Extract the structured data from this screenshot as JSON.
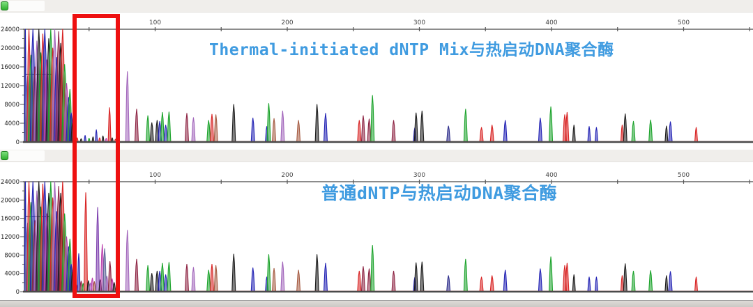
{
  "accent_colors": {
    "title_blue": "#3f9be0",
    "annotation_red": "#ee1010",
    "axis_line": "#555555",
    "baseline": "#4a4a4a"
  },
  "panels": [
    {
      "title": "Thermal-initiated dNTP Mix与热启动DNA聚合酶"
    },
    {
      "title": "普通dNTP与热启动DNA聚合酶"
    }
  ],
  "annotation": {
    "type": "highlight-box",
    "x_bp_from": 38,
    "x_bp_to": 73,
    "spans_both_panels": true
  },
  "chart_data": [
    {
      "type": "line",
      "subtype": "electropherogram",
      "title": "Thermal-initiated dNTP Mix与热启动DNA聚合酶",
      "x_ticks": [
        100,
        200,
        300,
        400,
        500
      ],
      "x_minor_tick_step": 50,
      "xlim": [
        0,
        553
      ],
      "ylim": [
        0,
        24000
      ],
      "y_ticks": [
        0,
        4000,
        8000,
        12000,
        16000,
        20000,
        24000
      ],
      "legend": "none",
      "grid": false,
      "colors": {
        "blue": "#2323b4",
        "green": "#1ba32b",
        "red": "#d82424",
        "black": "#1d1d1d",
        "magenta": "#bb3fae",
        "maroon": "#8e2544",
        "plum": "#a266bb",
        "violet": "#7d3fae",
        "brown": "#a65c43",
        "slate": "#5e6899",
        "navy": "#2b2b8a"
      },
      "plateau": {
        "from_bp": 1,
        "to_bp": 22,
        "value": 14400,
        "color": "slate"
      },
      "peaks": [
        [
          1.8,
          24000,
          "blue",
          1.2
        ],
        [
          3.5,
          14000,
          "slate",
          4
        ],
        [
          4.5,
          24000,
          "red",
          3
        ],
        [
          6,
          18500,
          "green",
          4
        ],
        [
          7.5,
          24000,
          "blue",
          4
        ],
        [
          9,
          16000,
          "maroon",
          4
        ],
        [
          10.5,
          21500,
          "plum",
          4
        ],
        [
          12,
          24000,
          "black",
          4
        ],
        [
          13.5,
          19000,
          "green",
          4
        ],
        [
          15,
          23000,
          "red",
          4
        ],
        [
          16.5,
          24000,
          "blue",
          4
        ],
        [
          18,
          17500,
          "magenta",
          4
        ],
        [
          19.5,
          22000,
          "black",
          4
        ],
        [
          21,
          24000,
          "green",
          4
        ],
        [
          22.5,
          20000,
          "red",
          4
        ],
        [
          24,
          24000,
          "plum",
          4
        ],
        [
          25.5,
          18000,
          "blue",
          4
        ],
        [
          27,
          23500,
          "maroon",
          4
        ],
        [
          28.5,
          21000,
          "black",
          4
        ],
        [
          30,
          24000,
          "red",
          4
        ],
        [
          31.5,
          16500,
          "green",
          4
        ],
        [
          33,
          12500,
          "magenta",
          4
        ],
        [
          34.5,
          9500,
          "blue",
          3.5
        ],
        [
          35.5,
          11200,
          "green",
          3
        ],
        [
          36.5,
          6200,
          "blue",
          3
        ],
        [
          37.5,
          4000,
          "black",
          2.5
        ],
        [
          41,
          900,
          "red",
          1.5
        ],
        [
          44,
          700,
          "black",
          1.5
        ],
        [
          47,
          1400,
          "blue",
          1.5
        ],
        [
          50,
          800,
          "green",
          1.5
        ],
        [
          53,
          1100,
          "black",
          1.5
        ],
        [
          55.5,
          2600,
          "blue",
          1.5
        ],
        [
          58,
          900,
          "red",
          1.5
        ],
        [
          60.5,
          1300,
          "black",
          1.5
        ],
        [
          63,
          800,
          "magenta",
          1.5
        ],
        [
          65.5,
          7300,
          "red",
          2
        ],
        [
          67.5,
          900,
          "black",
          1.5
        ],
        [
          70,
          600,
          "red",
          1.5
        ],
        [
          72,
          500,
          "blue",
          1.5
        ],
        [
          79,
          15000,
          "plum",
          2.5
        ],
        [
          86,
          7000,
          "maroon",
          2.5
        ],
        [
          94.5,
          5600,
          "green",
          2.5
        ],
        [
          97.5,
          4100,
          "black",
          2.5
        ],
        [
          101.5,
          4600,
          "black",
          2.5
        ],
        [
          103.5,
          4400,
          "blue",
          2.5
        ],
        [
          105.5,
          6300,
          "green",
          2.5
        ],
        [
          108,
          3600,
          "blue",
          2.5
        ],
        [
          110.5,
          6400,
          "green",
          2.5
        ],
        [
          124,
          6100,
          "maroon",
          2.5
        ],
        [
          129,
          5200,
          "plum",
          2.5
        ],
        [
          140.5,
          4600,
          "green",
          2.5
        ],
        [
          143,
          5900,
          "red",
          2.5
        ],
        [
          146,
          5800,
          "brown",
          2.5
        ],
        [
          159.5,
          8000,
          "black",
          2.5
        ],
        [
          174,
          5100,
          "blue",
          2.5
        ],
        [
          184.5,
          3300,
          "blue",
          2
        ],
        [
          186,
          8200,
          "green",
          2.5
        ],
        [
          190,
          5000,
          "brown",
          2.5
        ],
        [
          196.5,
          6600,
          "plum",
          2.5
        ],
        [
          208.5,
          4600,
          "brown",
          2.5
        ],
        [
          222.5,
          8000,
          "black",
          2.5
        ],
        [
          229,
          6100,
          "blue",
          2.5
        ],
        [
          254.5,
          4600,
          "red",
          2.5
        ],
        [
          257.5,
          5600,
          "maroon",
          2.5
        ],
        [
          262,
          4900,
          "maroon",
          2.5
        ],
        [
          264.5,
          9900,
          "green",
          2.5
        ],
        [
          280.5,
          4600,
          "maroon",
          2.5
        ],
        [
          296.5,
          3000,
          "blue",
          2
        ],
        [
          297.5,
          6200,
          "black",
          2.5
        ],
        [
          302,
          6600,
          "black",
          2.5
        ],
        [
          322,
          3400,
          "navy",
          2.5
        ],
        [
          335,
          7000,
          "green",
          2.5
        ],
        [
          347,
          3100,
          "red",
          2.5
        ],
        [
          355,
          3600,
          "red",
          2.5
        ],
        [
          365,
          4600,
          "blue",
          2.5
        ],
        [
          391.5,
          5100,
          "blue",
          2.5
        ],
        [
          399.5,
          7500,
          "green",
          2.5
        ],
        [
          410,
          5800,
          "red",
          2.5
        ],
        [
          411.8,
          6300,
          "red",
          2.5
        ],
        [
          417,
          3600,
          "black",
          2
        ],
        [
          428.5,
          3300,
          "blue",
          2
        ],
        [
          434,
          3100,
          "blue",
          2
        ],
        [
          453.5,
          3600,
          "red",
          2
        ],
        [
          455.8,
          6000,
          "black",
          2.5
        ],
        [
          462,
          4400,
          "green",
          2.5
        ],
        [
          475,
          4700,
          "green",
          2.5
        ],
        [
          487,
          3400,
          "black",
          2
        ],
        [
          490,
          4300,
          "blue",
          2.5
        ],
        [
          509.5,
          3100,
          "red",
          2
        ]
      ]
    },
    {
      "type": "line",
      "subtype": "electropherogram",
      "title": "普通dNTP与热启动DNA聚合酶",
      "x_ticks": [
        100,
        200,
        300,
        400,
        500
      ],
      "x_minor_tick_step": 50,
      "xlim": [
        0,
        553
      ],
      "ylim": [
        0,
        24000
      ],
      "y_ticks": [
        0,
        4000,
        8000,
        12000,
        16000,
        20000,
        24000
      ],
      "legend": "none",
      "grid": false,
      "colors": {
        "blue": "#2323b4",
        "green": "#1ba32b",
        "red": "#d82424",
        "black": "#1d1d1d",
        "magenta": "#bb3fae",
        "maroon": "#8e2544",
        "plum": "#a266bb",
        "violet": "#7d3fae",
        "brown": "#a65c43",
        "slate": "#5e6899",
        "navy": "#2b2b8a"
      },
      "plateau": {
        "from_bp": 1,
        "to_bp": 20,
        "value": 16400,
        "color": "slate"
      },
      "peaks": [
        [
          1.8,
          24000,
          "blue",
          1.2
        ],
        [
          3.5,
          15000,
          "slate",
          4
        ],
        [
          4.5,
          24000,
          "red",
          3
        ],
        [
          6,
          19500,
          "green",
          4
        ],
        [
          7.5,
          24000,
          "blue",
          4
        ],
        [
          9,
          15500,
          "maroon",
          4
        ],
        [
          10.5,
          22000,
          "plum",
          4
        ],
        [
          12,
          24000,
          "black",
          4
        ],
        [
          13.5,
          18500,
          "green",
          4
        ],
        [
          15,
          23500,
          "red",
          4
        ],
        [
          16.5,
          24000,
          "blue",
          4
        ],
        [
          18,
          17000,
          "magenta",
          4
        ],
        [
          19.5,
          21500,
          "black",
          4
        ],
        [
          21,
          24000,
          "green",
          4
        ],
        [
          22.5,
          20500,
          "red",
          4
        ],
        [
          24,
          24000,
          "plum",
          4
        ],
        [
          25.5,
          17500,
          "blue",
          4
        ],
        [
          27,
          23000,
          "maroon",
          4
        ],
        [
          28.5,
          21500,
          "black",
          4
        ],
        [
          30,
          24000,
          "red",
          4
        ],
        [
          31.5,
          17000,
          "green",
          4
        ],
        [
          33,
          12000,
          "magenta",
          4
        ],
        [
          34.5,
          9800,
          "blue",
          3.5
        ],
        [
          35.5,
          11500,
          "green",
          3
        ],
        [
          36.5,
          6000,
          "blue",
          3
        ],
        [
          37.5,
          4200,
          "black",
          2.5
        ],
        [
          40.5,
          1500,
          "red",
          1.5
        ],
        [
          42.2,
          8300,
          "blue",
          2
        ],
        [
          44,
          2300,
          "maroon",
          2
        ],
        [
          45.5,
          1800,
          "green",
          2
        ],
        [
          47.5,
          21600,
          "red",
          2.5
        ],
        [
          49.5,
          2400,
          "black",
          2
        ],
        [
          51,
          1900,
          "plum",
          2
        ],
        [
          52.5,
          3000,
          "magenta",
          2
        ],
        [
          54,
          2200,
          "brown",
          2
        ],
        [
          56.5,
          18400,
          "violet",
          2.5
        ],
        [
          58.5,
          2600,
          "black",
          2
        ],
        [
          60,
          10300,
          "magenta",
          2.5
        ],
        [
          61.8,
          9400,
          "slate",
          2.5
        ],
        [
          63.5,
          3400,
          "plum",
          2
        ],
        [
          65.8,
          6600,
          "maroon",
          2.5
        ],
        [
          67.5,
          2800,
          "magenta",
          2
        ],
        [
          69,
          2000,
          "black",
          2
        ],
        [
          71,
          1500,
          "red",
          2
        ],
        [
          79,
          13400,
          "plum",
          2.5
        ],
        [
          86,
          7100,
          "maroon",
          2.5
        ],
        [
          94.5,
          5700,
          "green",
          2.5
        ],
        [
          97.5,
          4000,
          "black",
          2.5
        ],
        [
          101.5,
          4500,
          "black",
          2.5
        ],
        [
          103.5,
          4500,
          "blue",
          2.5
        ],
        [
          105.5,
          6200,
          "green",
          2.5
        ],
        [
          108,
          3700,
          "blue",
          2.5
        ],
        [
          110.5,
          6400,
          "green",
          2.5
        ],
        [
          124,
          6000,
          "maroon",
          2.5
        ],
        [
          129,
          5300,
          "plum",
          2.5
        ],
        [
          140.5,
          4700,
          "green",
          2.5
        ],
        [
          143,
          6000,
          "red",
          2.5
        ],
        [
          146,
          5700,
          "brown",
          2.5
        ],
        [
          159.5,
          8200,
          "black",
          2.5
        ],
        [
          174,
          5200,
          "blue",
          2.5
        ],
        [
          184.5,
          3200,
          "blue",
          2
        ],
        [
          186,
          8100,
          "green",
          2.5
        ],
        [
          190,
          5100,
          "brown",
          2.5
        ],
        [
          196.5,
          6500,
          "plum",
          2.5
        ],
        [
          208.5,
          4700,
          "brown",
          2.5
        ],
        [
          222.5,
          8100,
          "black",
          2.5
        ],
        [
          229,
          6200,
          "blue",
          2.5
        ],
        [
          254.5,
          4500,
          "red",
          2.5
        ],
        [
          257.5,
          5500,
          "maroon",
          2.5
        ],
        [
          262,
          5000,
          "maroon",
          2.5
        ],
        [
          264.5,
          10100,
          "green",
          2.5
        ],
        [
          280.5,
          4500,
          "maroon",
          2.5
        ],
        [
          296.5,
          3100,
          "blue",
          2
        ],
        [
          297.5,
          6300,
          "black",
          2.5
        ],
        [
          302,
          6500,
          "black",
          2.5
        ],
        [
          322,
          3500,
          "navy",
          2.5
        ],
        [
          335,
          7100,
          "green",
          2.5
        ],
        [
          347,
          3200,
          "red",
          2.5
        ],
        [
          355,
          3500,
          "red",
          2.5
        ],
        [
          365,
          4700,
          "blue",
          2.5
        ],
        [
          391.5,
          5000,
          "blue",
          2.5
        ],
        [
          399.5,
          7600,
          "green",
          2.5
        ],
        [
          410,
          5700,
          "red",
          2.5
        ],
        [
          411.8,
          6200,
          "red",
          2.5
        ],
        [
          417,
          3700,
          "black",
          2
        ],
        [
          428.5,
          3200,
          "blue",
          2
        ],
        [
          434,
          3200,
          "blue",
          2
        ],
        [
          453.5,
          3500,
          "red",
          2
        ],
        [
          455.8,
          6100,
          "black",
          2.5
        ],
        [
          462,
          4500,
          "green",
          2.5
        ],
        [
          475,
          4600,
          "green",
          2.5
        ],
        [
          487,
          3500,
          "black",
          2
        ],
        [
          490,
          4400,
          "blue",
          2.5
        ],
        [
          509.5,
          3200,
          "red",
          2
        ]
      ]
    }
  ]
}
